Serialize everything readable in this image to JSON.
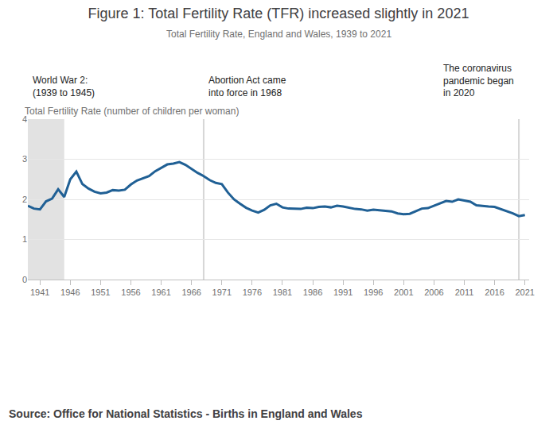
{
  "chart_data": {
    "type": "line",
    "title": "Figure 1: Total Fertility Rate (TFR) increased slightly in 2021",
    "subtitle": "Total Fertility Rate, England and Wales, 1939 to 2021",
    "y_label": "Total Fertility Rate (number of children per woman)",
    "source": "Source: Office for National Statistics - Births in England and Wales",
    "x": [
      1939,
      1940,
      1941,
      1942,
      1943,
      1944,
      1945,
      1946,
      1947,
      1948,
      1949,
      1950,
      1951,
      1952,
      1953,
      1954,
      1955,
      1956,
      1957,
      1958,
      1959,
      1960,
      1961,
      1962,
      1963,
      1964,
      1965,
      1966,
      1967,
      1968,
      1969,
      1970,
      1971,
      1972,
      1973,
      1974,
      1975,
      1976,
      1977,
      1978,
      1979,
      1980,
      1981,
      1982,
      1983,
      1984,
      1985,
      1986,
      1987,
      1988,
      1989,
      1990,
      1991,
      1992,
      1993,
      1994,
      1995,
      1996,
      1997,
      1998,
      1999,
      2000,
      2001,
      2002,
      2003,
      2004,
      2005,
      2006,
      2007,
      2008,
      2009,
      2010,
      2011,
      2012,
      2013,
      2014,
      2015,
      2016,
      2017,
      2018,
      2019,
      2020,
      2021
    ],
    "values": [
      1.84,
      1.77,
      1.75,
      1.95,
      2.02,
      2.25,
      2.06,
      2.5,
      2.69,
      2.38,
      2.27,
      2.19,
      2.15,
      2.17,
      2.23,
      2.22,
      2.24,
      2.37,
      2.47,
      2.53,
      2.58,
      2.7,
      2.79,
      2.87,
      2.89,
      2.93,
      2.86,
      2.76,
      2.66,
      2.58,
      2.48,
      2.41,
      2.38,
      2.17,
      2.0,
      1.89,
      1.79,
      1.72,
      1.67,
      1.74,
      1.85,
      1.89,
      1.8,
      1.77,
      1.77,
      1.76,
      1.79,
      1.78,
      1.81,
      1.82,
      1.8,
      1.84,
      1.82,
      1.79,
      1.76,
      1.75,
      1.72,
      1.74,
      1.73,
      1.72,
      1.7,
      1.65,
      1.63,
      1.64,
      1.71,
      1.77,
      1.78,
      1.84,
      1.9,
      1.96,
      1.94,
      2.0,
      1.97,
      1.94,
      1.85,
      1.83,
      1.82,
      1.81,
      1.76,
      1.7,
      1.65,
      1.58,
      1.61
    ],
    "color": "#206095",
    "xlim": [
      1939,
      2021.7
    ],
    "xticks": [
      1941,
      1946,
      1951,
      1956,
      1961,
      1966,
      1971,
      1976,
      1981,
      1986,
      1991,
      1996,
      2001,
      2006,
      2011,
      2016,
      2021
    ],
    "ylim": [
      0,
      4
    ],
    "yticks": [
      0,
      1,
      2,
      3,
      4
    ],
    "grid": true,
    "annotations": [
      {
        "lines": [
          "World War 2:",
          "(1939 to 1945)"
        ],
        "span": [
          1939,
          1945
        ]
      },
      {
        "lines": [
          "Abortion Act came",
          "into force in 1968"
        ],
        "x": 1968
      },
      {
        "lines": [
          "The coronavirus",
          "pandemic began",
          "in 2020"
        ],
        "x": 2020
      }
    ]
  }
}
